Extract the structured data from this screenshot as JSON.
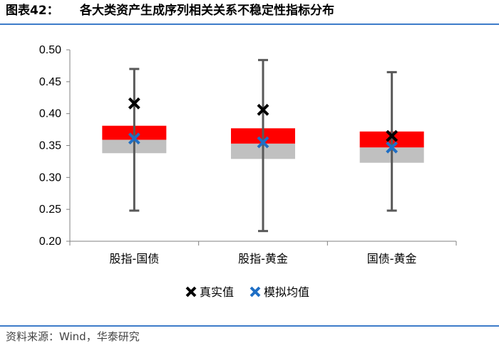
{
  "header": {
    "label": "图表42：",
    "title": "各大类资产生成序列相关关系不稳定性指标分布"
  },
  "source": "资料来源：Wind，华泰研究",
  "colors": {
    "box_upper": "#ff0000",
    "box_lower": "#c0c0c0",
    "whisker": "#595959",
    "actual_marker": "#000000",
    "simulated_marker": "#1f6fc5",
    "rule": "#3d7cc9"
  },
  "chart_data": {
    "type": "boxplot",
    "categories": [
      "股指-国债",
      "股指-黄金",
      "国债-黄金"
    ],
    "ylim": [
      0.2,
      0.5
    ],
    "y_ticks": [
      "0.20",
      "0.25",
      "0.30",
      "0.35",
      "0.40",
      "0.45",
      "0.50"
    ],
    "y_tick_values": [
      0.2,
      0.25,
      0.3,
      0.35,
      0.4,
      0.45,
      0.5
    ],
    "min": [
      0.248,
      0.216,
      0.248
    ],
    "q1": [
      0.338,
      0.329,
      0.323
    ],
    "median": [
      0.359,
      0.353,
      0.347
    ],
    "q3": [
      0.381,
      0.377,
      0.372
    ],
    "max": [
      0.47,
      0.484,
      0.465
    ],
    "series": [
      {
        "name": "真实值",
        "values": [
          0.416,
          0.406,
          0.365
        ]
      },
      {
        "name": "模拟均值",
        "values": [
          0.361,
          0.355,
          0.347
        ]
      }
    ],
    "legend_position": "bottom"
  }
}
